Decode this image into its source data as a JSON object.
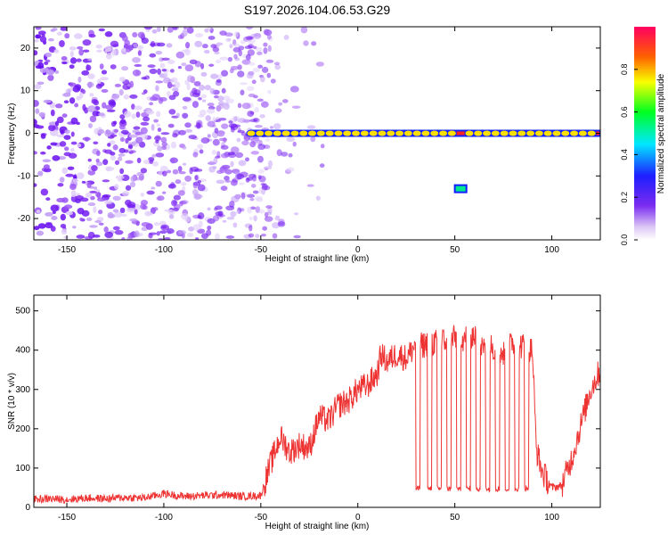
{
  "title": "S197.2026.104.06.53.G29",
  "chart_data": [
    {
      "type": "heatmap",
      "xlabel": "Height of straight line (km)",
      "ylabel": "Frequency (Hz)",
      "xlim": [
        -167,
        125
      ],
      "ylim": [
        -25,
        25
      ],
      "xticks": [
        -150,
        -100,
        -50,
        0,
        50,
        100
      ],
      "yticks": [
        -20,
        -10,
        0,
        10,
        20
      ],
      "colorbar": {
        "label": "Normalized spectral amplitude",
        "range": [
          0,
          1
        ],
        "ticks": [
          0.0,
          0.2,
          0.4,
          0.6,
          0.8
        ],
        "tick_labels": [
          "0.0",
          "0.2",
          "0.4",
          "0.6",
          "0.8"
        ]
      },
      "features": [
        {
          "name": "carrier-line",
          "x_range": [
            -55,
            125
          ],
          "frequency_hz": 0,
          "amplitude": 0.9
        },
        {
          "name": "noise-region",
          "x_range": [
            -167,
            -45
          ],
          "frequency_range_hz": [
            -25,
            25
          ],
          "amplitude": 0.2
        },
        {
          "name": "offset-tone",
          "x_range": [
            50,
            56
          ],
          "frequency_hz": -13,
          "amplitude": 0.45
        }
      ]
    },
    {
      "type": "line",
      "xlabel": "Height of straight line (km)",
      "ylabel": "SNR (10 * v/v)",
      "xlim": [
        -167,
        125
      ],
      "ylim": [
        0,
        540
      ],
      "xticks": [
        -150,
        -100,
        -50,
        0,
        50,
        100
      ],
      "yticks": [
        0,
        100,
        200,
        300,
        400,
        500
      ],
      "color": "#ee3333",
      "series": [
        {
          "name": "SNR",
          "x": [
            -167,
            -160,
            -150,
            -140,
            -130,
            -120,
            -110,
            -100,
            -90,
            -80,
            -70,
            -60,
            -50,
            -45,
            -40,
            -35,
            -30,
            -25,
            -20,
            -15,
            -10,
            -5,
            0,
            5,
            10,
            12,
            15,
            20,
            25,
            28,
            30,
            32,
            35,
            40,
            45,
            50,
            55,
            60,
            65,
            70,
            75,
            80,
            85,
            90,
            92,
            95,
            100,
            105,
            110,
            115,
            120,
            125
          ],
          "y": [
            20,
            22,
            20,
            24,
            22,
            25,
            24,
            35,
            28,
            30,
            32,
            28,
            30,
            110,
            180,
            140,
            160,
            150,
            230,
            220,
            260,
            270,
            300,
            310,
            340,
            390,
            370,
            390,
            380,
            400,
            420,
            410,
            415,
            420,
            425,
            430,
            430,
            440,
            400,
            410,
            390,
            420,
            410,
            400,
            150,
            90,
            50,
            55,
            120,
            210,
            300,
            350
          ]
        }
      ],
      "dropouts": [
        {
          "x_range": [
            30,
            32
          ],
          "min_y": 40
        },
        {
          "x_range": [
            36,
            38
          ],
          "min_y": 40
        },
        {
          "x_range": [
            41,
            43
          ],
          "min_y": 40
        },
        {
          "x_range": [
            46,
            48
          ],
          "min_y": 40
        },
        {
          "x_range": [
            51,
            53
          ],
          "min_y": 40
        },
        {
          "x_range": [
            56,
            58
          ],
          "min_y": 40
        },
        {
          "x_range": [
            61,
            63
          ],
          "min_y": 40
        },
        {
          "x_range": [
            66,
            68
          ],
          "min_y": 40
        },
        {
          "x_range": [
            71,
            73
          ],
          "min_y": 40
        },
        {
          "x_range": [
            76,
            78
          ],
          "min_y": 40
        },
        {
          "x_range": [
            81,
            83
          ],
          "min_y": 40
        },
        {
          "x_range": [
            86,
            88
          ],
          "min_y": 40
        }
      ]
    }
  ]
}
